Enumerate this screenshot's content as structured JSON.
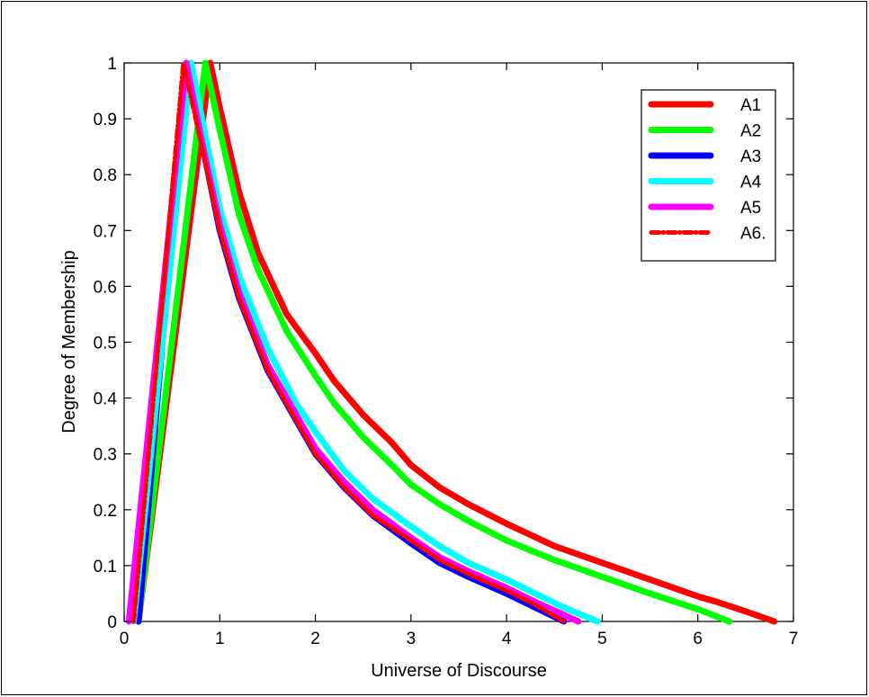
{
  "chart_data": {
    "type": "line",
    "title": "",
    "xlabel": "Universe of Discourse",
    "ylabel": "Degree of Membership",
    "xlim": [
      0,
      7
    ],
    "ylim": [
      0,
      1
    ],
    "xticks": [
      "0",
      "1",
      "2",
      "3",
      "4",
      "5",
      "6",
      "7"
    ],
    "yticks": [
      "0",
      "0.1",
      "0.2",
      "0.3",
      "0.4",
      "0.5",
      "0.6",
      "0.7",
      "0.8",
      "0.9",
      "1"
    ],
    "grid": false,
    "legend_position": "top-right",
    "series": [
      {
        "name": "A1",
        "color": "#ff0000",
        "style": "solid",
        "x": [
          0.15,
          0.9,
          1.0,
          1.2,
          1.4,
          1.7,
          2.0,
          2.2,
          2.5,
          2.8,
          3.0,
          3.3,
          3.6,
          4.0,
          4.5,
          5.0,
          5.5,
          6.0,
          6.2,
          6.5,
          6.8
        ],
        "y": [
          0.0,
          1.0,
          0.92,
          0.77,
          0.66,
          0.55,
          0.48,
          0.43,
          0.37,
          0.32,
          0.28,
          0.24,
          0.21,
          0.175,
          0.135,
          0.105,
          0.075,
          0.045,
          0.035,
          0.018,
          0.0
        ]
      },
      {
        "name": "A2",
        "color": "#00ff00",
        "style": "solid",
        "x": [
          0.15,
          0.85,
          1.0,
          1.2,
          1.4,
          1.7,
          2.0,
          2.2,
          2.5,
          2.8,
          3.0,
          3.3,
          3.6,
          4.0,
          4.5,
          5.0,
          5.5,
          6.0,
          6.33
        ],
        "y": [
          0.0,
          1.0,
          0.88,
          0.73,
          0.63,
          0.52,
          0.44,
          0.39,
          0.33,
          0.28,
          0.245,
          0.21,
          0.18,
          0.145,
          0.11,
          0.08,
          0.05,
          0.022,
          0.0
        ]
      },
      {
        "name": "A3",
        "color": "#0000ff",
        "style": "solid",
        "x": [
          0.15,
          0.65,
          0.8,
          1.0,
          1.2,
          1.5,
          1.8,
          2.0,
          2.3,
          2.6,
          3.0,
          3.3,
          3.6,
          4.0,
          4.3,
          4.6
        ],
        "y": [
          0.0,
          1.0,
          0.87,
          0.7,
          0.58,
          0.45,
          0.36,
          0.3,
          0.24,
          0.19,
          0.14,
          0.105,
          0.08,
          0.05,
          0.025,
          0.0
        ]
      },
      {
        "name": "A4",
        "color": "#00ffff",
        "style": "solid",
        "x": [
          0.1,
          0.7,
          0.85,
          1.0,
          1.2,
          1.5,
          1.8,
          2.0,
          2.3,
          2.6,
          3.0,
          3.3,
          3.6,
          4.0,
          4.3,
          4.6,
          4.95
        ],
        "y": [
          0.0,
          1.0,
          0.87,
          0.74,
          0.62,
          0.49,
          0.39,
          0.34,
          0.27,
          0.22,
          0.17,
          0.135,
          0.105,
          0.075,
          0.05,
          0.025,
          0.0
        ]
      },
      {
        "name": "A5",
        "color": "#ff00ff",
        "style": "solid",
        "x": [
          0.05,
          0.65,
          0.8,
          1.0,
          1.2,
          1.5,
          1.8,
          2.0,
          2.3,
          2.6,
          3.0,
          3.3,
          3.6,
          4.0,
          4.3,
          4.75
        ],
        "y": [
          0.0,
          1.0,
          0.87,
          0.71,
          0.59,
          0.46,
          0.37,
          0.31,
          0.25,
          0.2,
          0.15,
          0.115,
          0.09,
          0.06,
          0.035,
          0.0
        ]
      },
      {
        "name": "A6.",
        "color": "#ff0000",
        "style": "dashdot",
        "x": [
          0.1,
          0.62,
          0.8,
          1.0,
          1.2,
          1.5,
          1.8,
          2.0,
          2.3,
          2.6,
          3.0,
          3.3,
          3.6,
          4.0,
          4.3,
          4.6
        ],
        "y": [
          0.0,
          1.0,
          0.86,
          0.7,
          0.58,
          0.45,
          0.36,
          0.3,
          0.24,
          0.19,
          0.145,
          0.11,
          0.085,
          0.055,
          0.03,
          0.0
        ]
      }
    ]
  }
}
